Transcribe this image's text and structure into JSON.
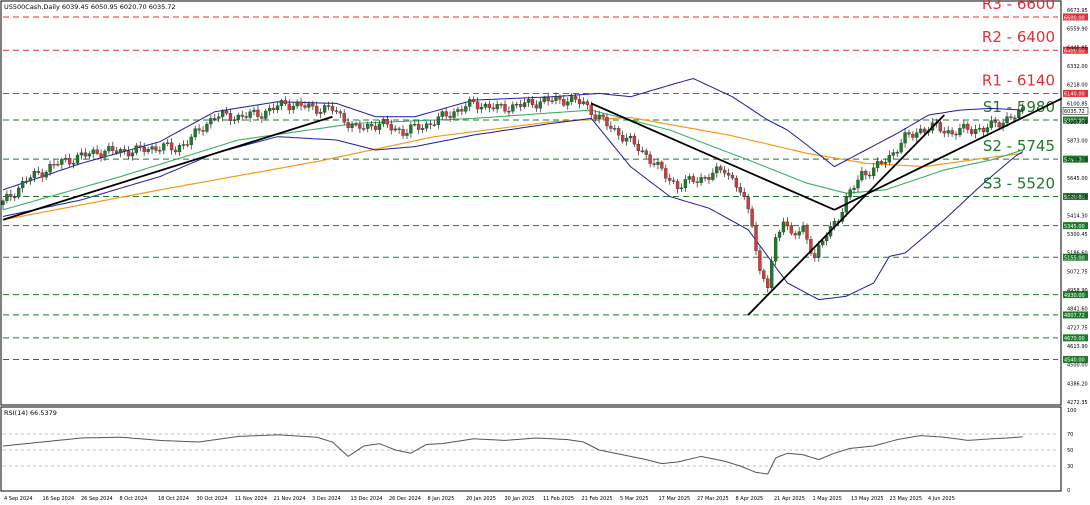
{
  "header": {
    "symbol_line": "US500Cash,Daily  6039.45 6050.95 6020.70 6035.72"
  },
  "rsi_header": "RSI(14) 66.5379",
  "colors": {
    "resistance": "#e0303a",
    "support": "#1e7a2a",
    "bollinger": "#1c1c9e",
    "ma_fast": "#3cb06a",
    "ma_slow": "#f59a1a",
    "trendline": "#000000",
    "candle_up": "#1e7a2a",
    "candle_down": "#d23a3a",
    "rsi_line": "#555555"
  },
  "levels": [
    {
      "value": 6600,
      "label": "R3 - 6600",
      "kind": "resistance",
      "tag": "6600.00"
    },
    {
      "value": 6400,
      "label": "R2 - 6400",
      "kind": "resistance",
      "tag": "6400.00"
    },
    {
      "value": 6140,
      "label": "R1 - 6140",
      "kind": "resistance",
      "tag": "6140.00"
    },
    {
      "value": 5980,
      "label": "S1 - 5980",
      "kind": "support",
      "tag": "5980.00"
    },
    {
      "value": 5745,
      "label": "S2 - 5745",
      "kind": "support",
      "tag": "5745.00"
    },
    {
      "value": 5520,
      "label": "S3 - 5520",
      "kind": "support",
      "tag": "5520.00"
    },
    {
      "value": 5345,
      "label": "",
      "kind": "support",
      "tag": "5345.00"
    },
    {
      "value": 5155,
      "label": "",
      "kind": "support",
      "tag": "5155.00"
    },
    {
      "value": 4930,
      "label": "",
      "kind": "support",
      "tag": "4930.00"
    },
    {
      "value": 4807.72,
      "label": "",
      "kind": "support",
      "tag": "4807.72"
    },
    {
      "value": 4670,
      "label": "",
      "kind": "support",
      "tag": "4670.00"
    },
    {
      "value": 4540,
      "label": "",
      "kind": "support",
      "tag": "4540.00"
    }
  ],
  "price_tag": {
    "value": 6035.72,
    "text": "6035.72"
  },
  "chart_data": {
    "type": "candlestick",
    "title": "US500Cash,Daily",
    "ylim": [
      4272,
      6690
    ],
    "y_ticks": [
      "6673.95",
      "6559.90",
      "6445.85",
      "6332.00",
      "6218.00",
      "6100.85",
      "5987.00",
      "5873.00",
      "5759.00",
      "5645.00",
      "5531.00",
      "5414.30",
      "5300.45",
      "5186.60",
      "5072.75",
      "4958.90",
      "4841.60",
      "4727.75",
      "4613.90",
      "4500.00",
      "4386.20",
      "4272.35"
    ],
    "x_ticks": [
      "4 Sep 2024",
      "16 Sep 2024",
      "26 Sep 2024",
      "8 Oct 2024",
      "18 Oct 2024",
      "30 Oct 2024",
      "11 Nov 2024",
      "21 Nov 2024",
      "3 Dec 2024",
      "13 Dec 2024",
      "26 Dec 2024",
      "8 Jan 2025",
      "20 Jan 2025",
      "30 Jan 2025",
      "11 Feb 2025",
      "21 Feb 2025",
      "5 Mar 2025",
      "17 Mar 2025",
      "27 Mar 2025",
      "8 Apr 2025",
      "21 Apr 2025",
      "1 May 2025",
      "13 May 2025",
      "23 May 2025",
      "4 Jun 2025"
    ],
    "close_anchors": [
      [
        0,
        5480
      ],
      [
        6,
        5620
      ],
      [
        14,
        5720
      ],
      [
        24,
        5790
      ],
      [
        34,
        5795
      ],
      [
        40,
        5820
      ],
      [
        44,
        5805
      ],
      [
        48,
        5870
      ],
      [
        54,
        6005
      ],
      [
        60,
        6000
      ],
      [
        66,
        6020
      ],
      [
        72,
        6080
      ],
      [
        80,
        6050
      ],
      [
        84,
        6045
      ],
      [
        90,
        5925
      ],
      [
        96,
        5960
      ],
      [
        102,
        5910
      ],
      [
        108,
        5950
      ],
      [
        114,
        6020
      ],
      [
        120,
        6080
      ],
      [
        126,
        6050
      ],
      [
        132,
        6070
      ],
      [
        138,
        6095
      ],
      [
        144,
        6105
      ],
      [
        148,
        6080
      ],
      [
        154,
        5950
      ],
      [
        160,
        5850
      ],
      [
        164,
        5770
      ],
      [
        168,
        5670
      ],
      [
        172,
        5580
      ],
      [
        176,
        5620
      ],
      [
        180,
        5640
      ],
      [
        184,
        5690
      ],
      [
        188,
        5550
      ],
      [
        191,
        5370
      ],
      [
        193,
        5060
      ],
      [
        195,
        4980
      ],
      [
        197,
        5250
      ],
      [
        199,
        5400
      ],
      [
        201,
        5280
      ],
      [
        204,
        5320
      ],
      [
        207,
        5160
      ],
      [
        210,
        5290
      ],
      [
        213,
        5400
      ],
      [
        216,
        5540
      ],
      [
        219,
        5660
      ],
      [
        222,
        5680
      ],
      [
        226,
        5760
      ],
      [
        230,
        5870
      ],
      [
        234,
        5920
      ],
      [
        238,
        5940
      ],
      [
        242,
        5900
      ],
      [
        246,
        5930
      ],
      [
        250,
        5920
      ],
      [
        254,
        5970
      ],
      [
        258,
        6000
      ],
      [
        260,
        6036
      ]
    ],
    "ma_fast_anchors": [
      [
        0,
        5440
      ],
      [
        30,
        5640
      ],
      [
        60,
        5860
      ],
      [
        90,
        5960
      ],
      [
        120,
        5990
      ],
      [
        150,
        6040
      ],
      [
        170,
        5920
      ],
      [
        190,
        5740
      ],
      [
        205,
        5600
      ],
      [
        215,
        5540
      ],
      [
        225,
        5560
      ],
      [
        240,
        5680
      ],
      [
        252,
        5740
      ],
      [
        260,
        5800
      ]
    ],
    "ma_slow_anchors": [
      [
        0,
        5380
      ],
      [
        40,
        5560
      ],
      [
        80,
        5730
      ],
      [
        110,
        5880
      ],
      [
        140,
        5970
      ],
      [
        160,
        5995
      ],
      [
        185,
        5890
      ],
      [
        205,
        5780
      ],
      [
        220,
        5720
      ],
      [
        235,
        5700
      ],
      [
        250,
        5750
      ],
      [
        260,
        5780
      ]
    ],
    "bb_upper_anchors": [
      [
        0,
        5560
      ],
      [
        20,
        5720
      ],
      [
        40,
        5850
      ],
      [
        54,
        6030
      ],
      [
        70,
        6090
      ],
      [
        85,
        6080
      ],
      [
        95,
        6000
      ],
      [
        105,
        6000
      ],
      [
        120,
        6100
      ],
      [
        140,
        6120
      ],
      [
        152,
        6140
      ],
      [
        160,
        6120
      ],
      [
        170,
        6190
      ],
      [
        176,
        6230
      ],
      [
        186,
        6120
      ],
      [
        195,
        5980
      ],
      [
        200,
        5920
      ],
      [
        205,
        5830
      ],
      [
        212,
        5700
      ],
      [
        220,
        5800
      ],
      [
        228,
        5900
      ],
      [
        236,
        6010
      ],
      [
        244,
        6040
      ],
      [
        252,
        6050
      ],
      [
        260,
        6040
      ]
    ],
    "bb_lower_anchors": [
      [
        0,
        5400
      ],
      [
        20,
        5500
      ],
      [
        40,
        5640
      ],
      [
        54,
        5780
      ],
      [
        70,
        5880
      ],
      [
        85,
        5860
      ],
      [
        95,
        5800
      ],
      [
        105,
        5820
      ],
      [
        120,
        5890
      ],
      [
        140,
        5960
      ],
      [
        150,
        5990
      ],
      [
        160,
        5700
      ],
      [
        170,
        5520
      ],
      [
        180,
        5450
      ],
      [
        190,
        5320
      ],
      [
        200,
        5000
      ],
      [
        208,
        4900
      ],
      [
        215,
        4920
      ],
      [
        222,
        5000
      ],
      [
        226,
        5160
      ],
      [
        230,
        5180
      ],
      [
        240,
        5380
      ],
      [
        250,
        5600
      ],
      [
        258,
        5760
      ],
      [
        260,
        5790
      ]
    ],
    "trendlines": [
      {
        "from": [
          0,
          5380
        ],
        "to": [
          84,
          6000
        ]
      },
      {
        "from": [
          150,
          6080
        ],
        "to": [
          212,
          5440
        ]
      },
      {
        "from": [
          190,
          4807.72
        ],
        "to": [
          240,
          6010
        ]
      },
      {
        "from": [
          212,
          5440
        ],
        "to": [
          270,
          6110
        ]
      }
    ],
    "rsi": {
      "label": "RSI(14) 66.5379",
      "ylim": [
        0,
        100
      ],
      "y_ticks": [
        "100",
        "70",
        "50",
        "30",
        "0"
      ],
      "anchors": [
        [
          0,
          55
        ],
        [
          10,
          60
        ],
        [
          20,
          65
        ],
        [
          30,
          66
        ],
        [
          40,
          62
        ],
        [
          50,
          60
        ],
        [
          60,
          67
        ],
        [
          70,
          69
        ],
        [
          80,
          66
        ],
        [
          84,
          60
        ],
        [
          88,
          42
        ],
        [
          92,
          55
        ],
        [
          96,
          58
        ],
        [
          100,
          50
        ],
        [
          104,
          46
        ],
        [
          108,
          57
        ],
        [
          112,
          58
        ],
        [
          120,
          64
        ],
        [
          128,
          62
        ],
        [
          136,
          65
        ],
        [
          144,
          63
        ],
        [
          148,
          60
        ],
        [
          152,
          50
        ],
        [
          158,
          44
        ],
        [
          164,
          38
        ],
        [
          168,
          33
        ],
        [
          172,
          35
        ],
        [
          178,
          42
        ],
        [
          184,
          36
        ],
        [
          188,
          30
        ],
        [
          192,
          22
        ],
        [
          195,
          20
        ],
        [
          197,
          40
        ],
        [
          200,
          46
        ],
        [
          204,
          44
        ],
        [
          208,
          38
        ],
        [
          212,
          46
        ],
        [
          216,
          52
        ],
        [
          222,
          55
        ],
        [
          228,
          63
        ],
        [
          234,
          68
        ],
        [
          240,
          66
        ],
        [
          246,
          62
        ],
        [
          252,
          64
        ],
        [
          256,
          65
        ],
        [
          260,
          66.5
        ]
      ],
      "current": 66.5379
    }
  }
}
